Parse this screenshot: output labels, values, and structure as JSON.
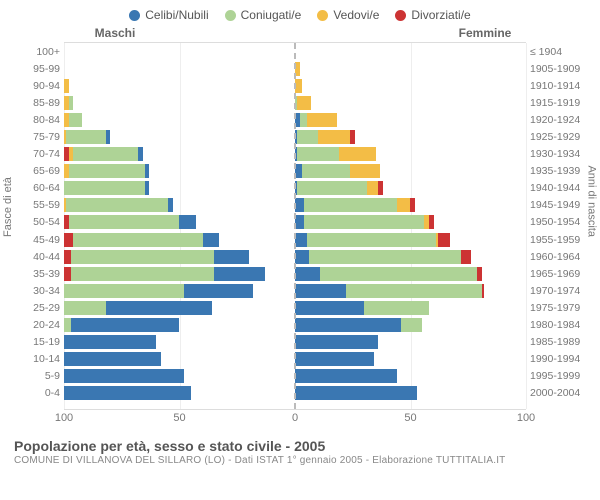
{
  "legend": [
    {
      "label": "Celibi/Nubili",
      "color": "#3a77b2"
    },
    {
      "label": "Coniugati/e",
      "color": "#aed396"
    },
    {
      "label": "Vedovi/e",
      "color": "#f3bd46"
    },
    {
      "label": "Divorziati/e",
      "color": "#cc3333"
    }
  ],
  "sides": {
    "left": "Maschi",
    "right": "Femmine"
  },
  "axis_labels": {
    "left": "Fasce di età",
    "right": "Anni di nascita"
  },
  "xlim": 100,
  "xticks_left": [
    100,
    50,
    0
  ],
  "xticks_right": [
    0,
    50,
    100
  ],
  "rows": [
    {
      "age": "100+",
      "year": "≤ 1904",
      "m": [
        0,
        0,
        0,
        0
      ],
      "f": [
        0,
        0,
        0,
        0
      ]
    },
    {
      "age": "95-99",
      "year": "1905-1909",
      "m": [
        0,
        0,
        0,
        0
      ],
      "f": [
        0,
        0,
        2,
        0
      ]
    },
    {
      "age": "90-94",
      "year": "1910-1914",
      "m": [
        0,
        0,
        2,
        0
      ],
      "f": [
        0,
        0,
        3,
        0
      ]
    },
    {
      "age": "85-89",
      "year": "1915-1919",
      "m": [
        0,
        2,
        2,
        0
      ],
      "f": [
        0,
        1,
        6,
        0
      ]
    },
    {
      "age": "80-84",
      "year": "1920-1924",
      "m": [
        0,
        6,
        2,
        0
      ],
      "f": [
        2,
        3,
        13,
        0
      ]
    },
    {
      "age": "75-79",
      "year": "1925-1929",
      "m": [
        2,
        17,
        1,
        0
      ],
      "f": [
        1,
        9,
        14,
        2
      ]
    },
    {
      "age": "70-74",
      "year": "1930-1934",
      "m": [
        2,
        28,
        2,
        2
      ],
      "f": [
        1,
        18,
        16,
        0
      ]
    },
    {
      "age": "65-69",
      "year": "1935-1939",
      "m": [
        2,
        33,
        2,
        0
      ],
      "f": [
        3,
        21,
        13,
        0
      ]
    },
    {
      "age": "60-64",
      "year": "1940-1944",
      "m": [
        2,
        35,
        0,
        0
      ],
      "f": [
        1,
        30,
        5,
        2
      ]
    },
    {
      "age": "55-59",
      "year": "1945-1949",
      "m": [
        2,
        44,
        1,
        0
      ],
      "f": [
        4,
        40,
        6,
        2
      ]
    },
    {
      "age": "50-54",
      "year": "1950-1954",
      "m": [
        7,
        48,
        0,
        2
      ],
      "f": [
        4,
        52,
        2,
        2
      ]
    },
    {
      "age": "45-49",
      "year": "1955-1959",
      "m": [
        7,
        56,
        0,
        4
      ],
      "f": [
        5,
        56,
        1,
        5
      ]
    },
    {
      "age": "40-44",
      "year": "1960-1964",
      "m": [
        15,
        62,
        0,
        3
      ],
      "f": [
        6,
        66,
        0,
        4
      ]
    },
    {
      "age": "35-39",
      "year": "1965-1969",
      "m": [
        22,
        62,
        0,
        3
      ],
      "f": [
        11,
        68,
        0,
        2
      ]
    },
    {
      "age": "30-34",
      "year": "1970-1974",
      "m": [
        30,
        52,
        0,
        0
      ],
      "f": [
        22,
        59,
        0,
        1
      ]
    },
    {
      "age": "25-29",
      "year": "1975-1979",
      "m": [
        46,
        18,
        0,
        0
      ],
      "f": [
        30,
        28,
        0,
        0
      ]
    },
    {
      "age": "20-24",
      "year": "1980-1984",
      "m": [
        47,
        3,
        0,
        0
      ],
      "f": [
        46,
        9,
        0,
        0
      ]
    },
    {
      "age": "15-19",
      "year": "1985-1989",
      "m": [
        40,
        0,
        0,
        0
      ],
      "f": [
        36,
        0,
        0,
        0
      ]
    },
    {
      "age": "10-14",
      "year": "1990-1994",
      "m": [
        42,
        0,
        0,
        0
      ],
      "f": [
        34,
        0,
        0,
        0
      ]
    },
    {
      "age": "5-9",
      "year": "1995-1999",
      "m": [
        52,
        0,
        0,
        0
      ],
      "f": [
        44,
        0,
        0,
        0
      ]
    },
    {
      "age": "0-4",
      "year": "2000-2004",
      "m": [
        55,
        0,
        0,
        0
      ],
      "f": [
        53,
        0,
        0,
        0
      ]
    }
  ],
  "footer": {
    "title": "Popolazione per età, sesso e stato civile - 2005",
    "source": "COMUNE DI VILLANOVA DEL SILLARO (LO) - Dati ISTAT 1° gennaio 2005 - Elaborazione TUTTITALIA.IT"
  }
}
